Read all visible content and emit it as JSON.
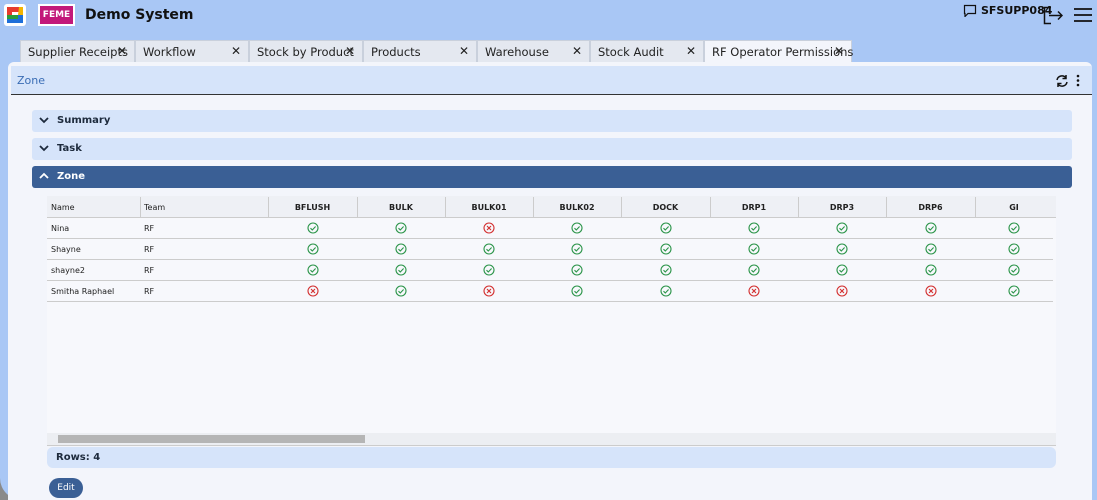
{
  "header": {
    "logo_text": "FEME",
    "title": "Demo System",
    "user": "SFSUPP084"
  },
  "tabs": [
    "Supplier Receipts",
    "Workflow",
    "Stock by Product",
    "Products",
    "Warehouse",
    "Stock Audit",
    "RF Operator Permissions"
  ],
  "panel": {
    "title": "Zone"
  },
  "sections": [
    "Summary",
    "Task",
    "Zone"
  ],
  "table": {
    "columns": [
      "Name",
      "Team",
      "BFLUSH",
      "BULK",
      "BULK01",
      "BULK02",
      "DOCK",
      "DRP1",
      "DRP3",
      "DRP6",
      "GI"
    ],
    "rows": [
      {
        "name": "Nina",
        "team": "RF",
        "permissions": [
          true,
          true,
          false,
          true,
          true,
          true,
          true,
          true,
          true
        ]
      },
      {
        "name": "Shayne",
        "team": "RF",
        "permissions": [
          true,
          true,
          true,
          true,
          true,
          true,
          true,
          true,
          true
        ]
      },
      {
        "name": "shayne2",
        "team": "RF",
        "permissions": [
          true,
          true,
          true,
          true,
          true,
          true,
          true,
          true,
          true
        ]
      },
      {
        "name": "Smitha Raphael",
        "team": "RF",
        "permissions": [
          false,
          true,
          false,
          true,
          true,
          false,
          false,
          false,
          true
        ]
      }
    ]
  },
  "footer": {
    "rows_label": "Rows: 4",
    "edit_button": "Edit"
  }
}
